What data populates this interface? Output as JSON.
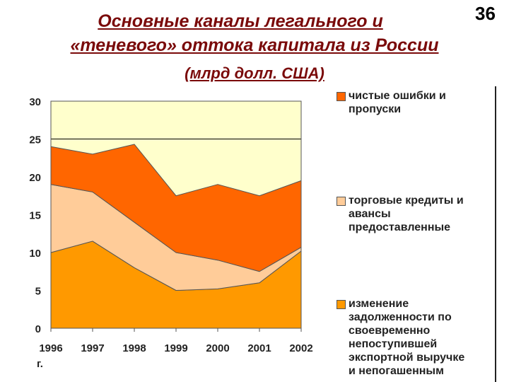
{
  "slide_number": "36",
  "title_line1": "Основные каналы легального и",
  "title_line2": "«теневого» оттока капитала из России",
  "subtitle": "(млрд долл. США)",
  "x_unit_label": "г.",
  "colors": {
    "background": "#ffffff",
    "plot_area": "#ffffcc",
    "errors_omissions": "#ff6600",
    "trade_credits": "#ffcc99",
    "export_debt": "#ff9900",
    "title": "#7a0a0a"
  },
  "legend": [
    {
      "label": "чистые ошибки и\nпропуски",
      "color": "#ff6600"
    },
    {
      "label": "торговые кредиты и\nавансы\nпредоставленные",
      "color": "#ffcc99"
    },
    {
      "label": "изменение\nзадолженности по\nсвоевременно\nнепоступившей\nэкспортной выручке\nи непогашенным",
      "color": "#ff9900"
    }
  ],
  "chart_data": {
    "type": "area",
    "stacked": true,
    "categories": [
      "1996",
      "1997",
      "1998",
      "1999",
      "2000",
      "2001",
      "2002"
    ],
    "series": [
      {
        "name": "изменение задолженности по своевременно непоступившей экспортной выручке и непогашенным",
        "values": [
          10,
          11.5,
          8,
          5,
          5.2,
          6,
          10.2
        ]
      },
      {
        "name": "торговые кредиты и авансы предоставленные",
        "values": [
          9,
          6.5,
          6,
          5,
          3.8,
          1.5,
          0.5
        ]
      },
      {
        "name": "чистые ошибки и пропуски",
        "values": [
          5,
          5,
          10.3,
          7.5,
          10,
          10,
          8.8
        ]
      }
    ],
    "y_ticks": [
      0,
      5,
      10,
      15,
      20,
      25,
      30
    ],
    "ylim": [
      0,
      30
    ],
    "grid": "horizontal line at 25",
    "legend_position": "right"
  }
}
